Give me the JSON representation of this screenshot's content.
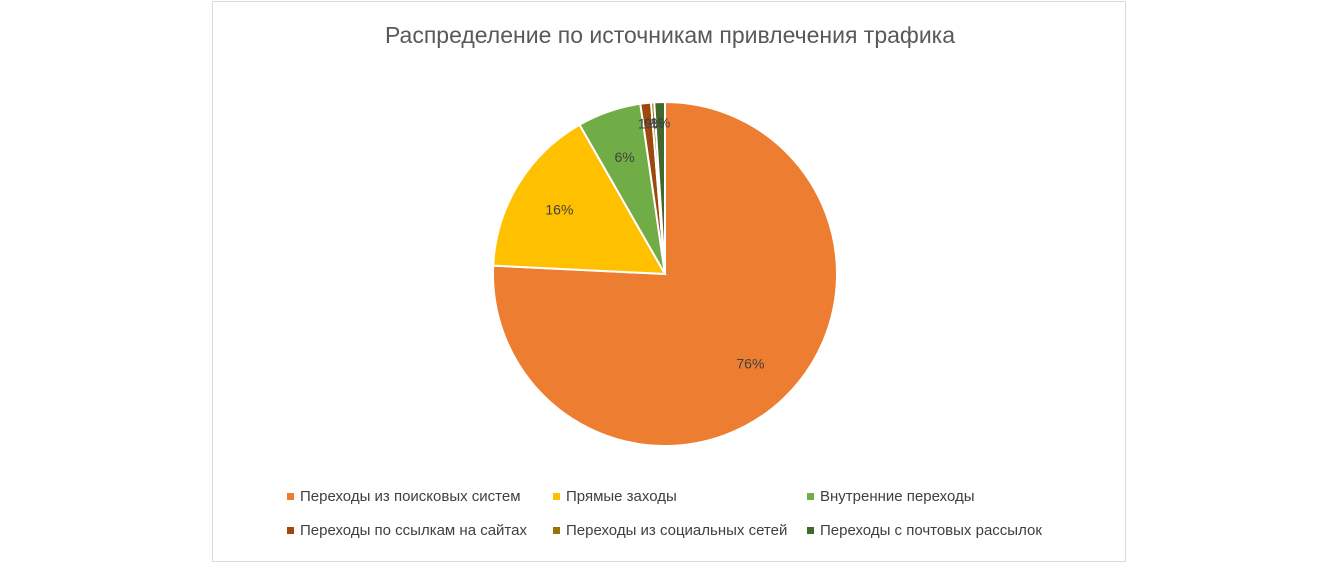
{
  "chart_data": {
    "type": "pie",
    "title": "Распределение по источникам привлечения трафика",
    "slices": [
      {
        "name": "Переходы из поисковых систем",
        "value": 76,
        "label": "76%",
        "color": "#ED7D31"
      },
      {
        "name": "Прямые заходы",
        "value": 16,
        "label": "16%",
        "color": "#FFC000"
      },
      {
        "name": "Внутренние переходы",
        "value": 6,
        "label": "6%",
        "color": "#70AD47"
      },
      {
        "name": "Переходы по ссылкам на сайтах",
        "value": 1,
        "label": "1%",
        "color": "#9E480E"
      },
      {
        "name": "Переходы из социальных сетей",
        "value": 0.3,
        "label": "0%",
        "color": "#997300"
      },
      {
        "name": "Переходы с почтовых рассылок",
        "value": 1,
        "label": "1%",
        "color": "#43682B"
      }
    ],
    "legend_position": "bottom"
  }
}
